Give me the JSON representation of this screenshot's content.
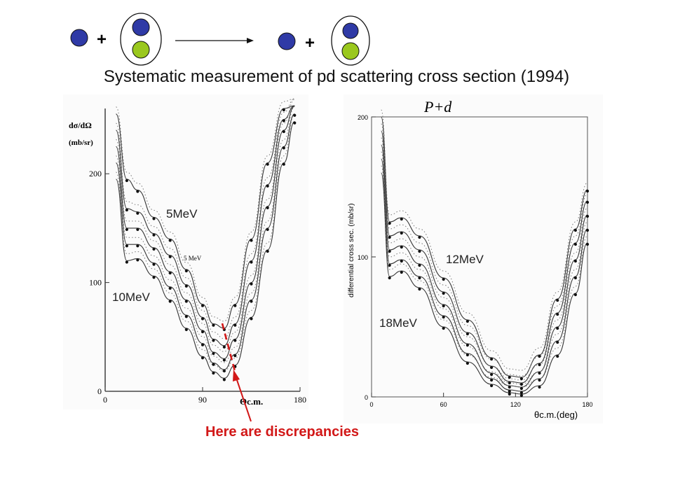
{
  "reaction": {
    "plus_before": "+",
    "plus_after": "+",
    "nucleon_color": "#2f3aa6",
    "second_nucleon_color": "#9ac81e"
  },
  "title": "Systematic measurement of pd scattering cross section (1994)",
  "caption": "Here are  discrepancies",
  "accent_color": "#d21818",
  "chart_data": [
    {
      "type": "line",
      "title": "",
      "ylabel": "dσ/dΩ",
      "ylabel_unit": "(mb/sr)",
      "xlabel": "Θc.m.",
      "xlim": [
        0,
        180
      ],
      "ylim": [
        0,
        260
      ],
      "xticks": [
        "0",
        "90",
        "180"
      ],
      "yticks": [
        "0",
        "100",
        "200"
      ],
      "energy_labels": [
        "5MeV",
        "10MeV"
      ],
      "inner_label": "5 MeV",
      "grid": false,
      "x": [
        10,
        20,
        30,
        45,
        60,
        75,
        90,
        100,
        110,
        120,
        135,
        150,
        165,
        175
      ],
      "series": [
        {
          "values": [
            255,
            195,
            185,
            160,
            140,
            112,
            80,
            62,
            58,
            80,
            140,
            210,
            260,
            275
          ]
        },
        {
          "values": [
            240,
            168,
            165,
            145,
            125,
            98,
            68,
            48,
            42,
            62,
            120,
            190,
            250,
            268
          ]
        },
        {
          "values": [
            225,
            150,
            150,
            132,
            110,
            84,
            56,
            36,
            30,
            48,
            100,
            170,
            240,
            262
          ]
        },
        {
          "values": [
            210,
            135,
            135,
            118,
            96,
            70,
            44,
            26,
            20,
            34,
            84,
            150,
            225,
            255
          ]
        },
        {
          "values": [
            195,
            120,
            122,
            106,
            84,
            58,
            32,
            18,
            12,
            24,
            68,
            130,
            210,
            248
          ]
        }
      ],
      "annotation": "minimum positions (dashed marker)"
    },
    {
      "type": "line",
      "title": "P+d",
      "ylabel": "differential cross sec. (mb/sr)",
      "xlabel": "θc.m.(deg)",
      "xlim": [
        0,
        180
      ],
      "ylim": [
        0,
        200
      ],
      "xticks": [
        "0",
        "60",
        "120",
        "180"
      ],
      "yticks": [
        "0",
        "100",
        "200"
      ],
      "energy_labels": [
        "12MeV",
        "18MeV"
      ],
      "grid": false,
      "x": [
        8,
        15,
        25,
        40,
        60,
        80,
        100,
        115,
        125,
        140,
        155,
        170,
        180
      ],
      "series": [
        {
          "values": [
            200,
            125,
            128,
            115,
            85,
            55,
            28,
            15,
            14,
            30,
            70,
            120,
            148
          ]
        },
        {
          "values": [
            190,
            115,
            118,
            105,
            75,
            46,
            22,
            11,
            10,
            24,
            60,
            110,
            140
          ]
        },
        {
          "values": [
            180,
            105,
            108,
            95,
            66,
            38,
            17,
            8,
            7,
            18,
            50,
            98,
            130
          ]
        },
        {
          "values": [
            170,
            95,
            98,
            86,
            58,
            31,
            13,
            5,
            4,
            13,
            40,
            86,
            120
          ]
        },
        {
          "values": [
            160,
            86,
            90,
            78,
            50,
            25,
            9,
            3,
            2,
            8,
            30,
            74,
            110
          ]
        }
      ]
    }
  ]
}
